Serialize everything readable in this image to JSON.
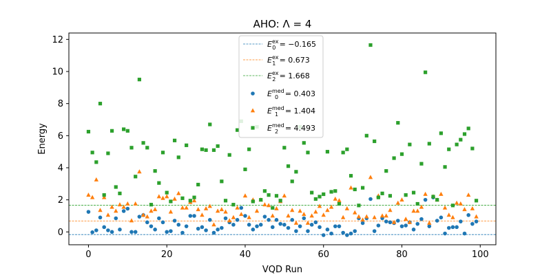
{
  "chart_data": {
    "type": "scatter",
    "title": "AHO: Λ = 4",
    "xlabel": "VQD Run",
    "ylabel": "Energy",
    "xlim": [
      -5,
      104
    ],
    "ylim": [
      -0.8,
      12.4
    ],
    "xticks": [
      0,
      20,
      40,
      60,
      80,
      100
    ],
    "yticks": [
      0,
      2,
      4,
      6,
      8,
      10,
      12
    ],
    "grid": false,
    "legend_position": "top-center",
    "reference_lines": [
      {
        "label_sym": "E",
        "label_sub": "0",
        "label_sup": "ex",
        "label_val": "= −0.165",
        "y": -0.165,
        "color": "#1f77b4"
      },
      {
        "label_sym": "E",
        "label_sub": "1",
        "label_sup": "ex",
        "label_val": "= 0.673",
        "y": 0.673,
        "color": "#ff7f0e"
      },
      {
        "label_sym": "E",
        "label_sub": "2",
        "label_sup": "ex",
        "label_val": "= 1.668",
        "y": 1.668,
        "color": "#2ca02c"
      }
    ],
    "series": [
      {
        "label_sym": "E",
        "label_sub": "0",
        "label_sup": "med",
        "label_val": "= 0.403",
        "marker": "circle",
        "color": "#1f77b4",
        "x": [
          0,
          1,
          2,
          3,
          4,
          5,
          6,
          7,
          8,
          9,
          10,
          11,
          12,
          13,
          14,
          15,
          16,
          17,
          18,
          19,
          20,
          21,
          22,
          23,
          24,
          25,
          26,
          27,
          28,
          29,
          30,
          31,
          32,
          33,
          34,
          35,
          36,
          37,
          38,
          39,
          40,
          41,
          42,
          43,
          44,
          45,
          46,
          47,
          48,
          49,
          50,
          51,
          52,
          53,
          54,
          55,
          56,
          57,
          58,
          59,
          60,
          61,
          62,
          63,
          64,
          65,
          66,
          67,
          68,
          69,
          70,
          71,
          72,
          73,
          74,
          75,
          76,
          77,
          78,
          79,
          80,
          81,
          82,
          83,
          84,
          85,
          86,
          87,
          88,
          89,
          90,
          91,
          92,
          93,
          94,
          95,
          96,
          97,
          98,
          99
        ],
        "y": [
          1.25,
          -0.02,
          0.1,
          0.9,
          0.3,
          0.1,
          0.0,
          0.85,
          0.15,
          1.3,
          1.45,
          0.0,
          0.0,
          0.95,
          1.05,
          0.6,
          0.35,
          0.15,
          0.85,
          0.6,
          0.0,
          0.05,
          0.7,
          0.45,
          -0.05,
          0.35,
          1.0,
          1.0,
          0.2,
          0.3,
          0.1,
          0.75,
          -0.05,
          0.15,
          0.25,
          0.85,
          0.6,
          0.45,
          0.75,
          1.5,
          1.0,
          0.45,
          0.15,
          0.35,
          0.45,
          0.95,
          0.75,
          0.3,
          0.75,
          0.5,
          0.45,
          0.25,
          0.75,
          0.05,
          0.35,
          0.85,
          0.05,
          0.45,
          0.6,
          0.3,
          -0.2,
          0.15,
          -0.1,
          0.35,
          0.35,
          -0.05,
          -0.2,
          -0.1,
          0.05,
          0.85,
          0.55,
          0.85,
          2.05,
          0.05,
          0.4,
          0.85,
          0.65,
          0.6,
          0.55,
          0.7,
          0.35,
          0.4,
          0.6,
          0.15,
          0.5,
          0.8,
          2.0,
          0.35,
          2.15,
          0.7,
          0.9,
          -0.1,
          0.25,
          0.3,
          0.3,
          0.65,
          -0.1,
          1.05,
          0.5,
          0.65
        ]
      },
      {
        "label_sym": "E",
        "label_sub": "1",
        "label_sup": "med",
        "label_val": "= 1.404",
        "marker": "triangle",
        "color": "#ff7f0e",
        "x": [
          0,
          1,
          2,
          3,
          4,
          5,
          6,
          7,
          8,
          9,
          10,
          11,
          12,
          13,
          14,
          15,
          16,
          17,
          18,
          19,
          20,
          21,
          22,
          23,
          24,
          25,
          26,
          27,
          28,
          29,
          30,
          31,
          32,
          33,
          34,
          35,
          36,
          37,
          38,
          39,
          40,
          41,
          42,
          43,
          44,
          45,
          46,
          47,
          48,
          49,
          50,
          51,
          52,
          53,
          54,
          55,
          56,
          57,
          58,
          59,
          60,
          61,
          62,
          63,
          64,
          65,
          66,
          67,
          68,
          69,
          70,
          71,
          72,
          73,
          74,
          75,
          76,
          77,
          78,
          79,
          80,
          81,
          82,
          83,
          84,
          85,
          86,
          87,
          88,
          89,
          90,
          91,
          92,
          93,
          94,
          95,
          96,
          97,
          98,
          99
        ],
        "y": [
          2.3,
          2.15,
          3.25,
          1.35,
          2.15,
          1.05,
          1.55,
          1.3,
          1.7,
          1.55,
          1.75,
          0.7,
          1.75,
          3.75,
          1.05,
          0.95,
          1.3,
          1.4,
          2.2,
          2.1,
          2.2,
          1.25,
          2.05,
          2.4,
          1.5,
          1.5,
          1.85,
          1.95,
          1.4,
          1.05,
          1.45,
          1.6,
          0.45,
          1.3,
          1.4,
          1.25,
          0.7,
          0.9,
          1.5,
          1.1,
          2.25,
          0.9,
          2.0,
          1.3,
          2.0,
          1.7,
          1.65,
          1.0,
          1.45,
          1.9,
          2.25,
          1.0,
          1.35,
          0.55,
          1.3,
          1.1,
          0.55,
          1.0,
          1.25,
          1.6,
          1.05,
          1.35,
          1.55,
          2.05,
          1.95,
          0.9,
          1.45,
          2.75,
          1.2,
          0.95,
          0.75,
          0.95,
          3.4,
          0.9,
          2.25,
          1.0,
          1.0,
          1.35,
          0.6,
          1.8,
          2.0,
          0.8,
          0.6,
          1.3,
          1.3,
          1.55,
          2.35,
          0.55,
          2.2,
          2.0,
          2.35,
          1.5,
          1.05,
          0.9,
          1.8,
          1.75,
          1.4,
          2.3,
          1.45,
          0.95
        ]
      },
      {
        "label_sym": "E",
        "label_sub": "2",
        "label_sup": "med",
        "label_val": "= 4.493",
        "marker": "square",
        "color": "#2ca02c",
        "x": [
          0,
          1,
          2,
          3,
          4,
          5,
          6,
          7,
          8,
          9,
          10,
          11,
          12,
          13,
          14,
          15,
          16,
          17,
          18,
          19,
          20,
          21,
          22,
          23,
          24,
          25,
          26,
          27,
          28,
          29,
          30,
          31,
          32,
          33,
          34,
          35,
          36,
          37,
          38,
          39,
          40,
          41,
          42,
          43,
          44,
          45,
          46,
          47,
          48,
          49,
          50,
          51,
          52,
          53,
          54,
          55,
          56,
          57,
          58,
          59,
          60,
          61,
          62,
          63,
          64,
          65,
          66,
          67,
          68,
          69,
          70,
          71,
          72,
          73,
          74,
          75,
          76,
          77,
          78,
          79,
          80,
          81,
          82,
          83,
          84,
          85,
          86,
          87,
          88,
          89,
          90,
          91,
          92,
          93,
          94,
          95,
          96,
          97,
          98,
          99
        ],
        "y": [
          6.25,
          4.95,
          4.35,
          8.0,
          2.3,
          4.9,
          6.3,
          2.8,
          2.4,
          6.4,
          6.3,
          5.25,
          3.45,
          9.5,
          5.55,
          5.25,
          1.7,
          3.8,
          3.05,
          4.95,
          2.45,
          1.9,
          5.7,
          4.65,
          2.1,
          5.4,
          1.95,
          2.15,
          2.95,
          5.15,
          5.1,
          6.7,
          5.1,
          5.35,
          3.15,
          1.95,
          4.8,
          1.7,
          6.35,
          6.9,
          3.9,
          5.15,
          1.9,
          6.55,
          2.0,
          2.55,
          2.3,
          1.5,
          2.25,
          1.95,
          5.25,
          4.1,
          3.15,
          3.75,
          6.55,
          5.55,
          4.95,
          2.45,
          2.05,
          2.2,
          2.35,
          5.0,
          2.5,
          2.55,
          1.75,
          4.95,
          5.15,
          3.5,
          2.65,
          1.65,
          2.75,
          6.0,
          11.65,
          5.65,
          2.15,
          2.4,
          3.8,
          2.25,
          4.6,
          6.8,
          4.85,
          2.3,
          5.45,
          2.45,
          1.75,
          4.25,
          9.95,
          5.5,
          2.2,
          2.0,
          6.15,
          4.05,
          5.15,
          1.65,
          5.45,
          5.75,
          6.1,
          6.45,
          5.2,
          1.95
        ]
      }
    ]
  }
}
